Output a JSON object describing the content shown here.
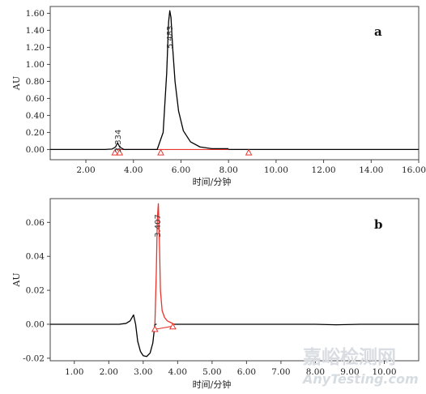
{
  "chart_data": [
    {
      "panel_label": "a",
      "type": "line",
      "xlabel": "时间/分钟",
      "ylabel": "AU",
      "xlim": [
        0.5,
        16.0
      ],
      "ylim": [
        -0.12,
        1.68
      ],
      "xticks": [
        2.0,
        4.0,
        6.0,
        8.0,
        10.0,
        12.0,
        14.0,
        16.0
      ],
      "xtick_labels": [
        "2.00",
        "4.00",
        "6.00",
        "8.00",
        "10.00",
        "12.00",
        "14.00",
        "16.00"
      ],
      "yticks": [
        0.0,
        0.2,
        0.4,
        0.6,
        0.8,
        1.0,
        1.2,
        1.4,
        1.6
      ],
      "ytick_labels": [
        "0.00",
        "0.20",
        "0.40",
        "0.60",
        "0.80",
        "1.00",
        "1.20",
        "1.40",
        "1.60"
      ],
      "series": [
        {
          "color": "#000000",
          "x": [
            0.5,
            2.8,
            3.1,
            3.25,
            3.334,
            3.42,
            3.6,
            5.0,
            5.25,
            5.4,
            5.48,
            5.53,
            5.58,
            5.65,
            5.75,
            5.9,
            6.1,
            6.4,
            6.8,
            7.3,
            8.0
          ],
          "y": [
            0.0,
            0.0,
            0.005,
            0.03,
            0.08,
            0.03,
            0.0,
            0.0,
            0.2,
            0.9,
            1.5,
            1.63,
            1.55,
            1.2,
            0.8,
            0.45,
            0.22,
            0.09,
            0.03,
            0.01,
            0.01
          ]
        },
        {
          "color": "#000000",
          "x": [
            8.0,
            16.0
          ],
          "y": [
            0.0,
            0.0
          ]
        }
      ],
      "baseline": {
        "color": "#e8342c",
        "x": [
          3.25,
          8.85
        ],
        "y": [
          0.0,
          0.0
        ]
      },
      "integration_marks": [
        {
          "x": 3.22,
          "y": -0.035
        },
        {
          "x": 3.42,
          "y": -0.035
        },
        {
          "x": 5.15,
          "y": -0.035
        },
        {
          "x": 8.85,
          "y": -0.035
        }
      ],
      "annotations": [
        {
          "text": "3.334",
          "x": 3.334,
          "y": 0.1
        },
        {
          "text": "5.483",
          "x": 5.5,
          "y": 1.32
        }
      ]
    },
    {
      "panel_label": "b",
      "type": "line",
      "xlabel": "时间/分钟",
      "ylabel": "AU",
      "xlim": [
        0.3,
        11.0
      ],
      "ylim": [
        -0.0215,
        0.074
      ],
      "xticks": [
        1.0,
        2.0,
        3.0,
        4.0,
        5.0,
        6.0,
        7.0,
        8.0,
        9.0,
        10.0
      ],
      "xtick_labels": [
        "1.00",
        "2.00",
        "3.00",
        "4.00",
        "5.00",
        "6.00",
        "7.00",
        "8.00",
        "9.00",
        "10.00"
      ],
      "yticks": [
        -0.02,
        0.0,
        0.02,
        0.04,
        0.06
      ],
      "ytick_labels": [
        "-0.02",
        "0.00",
        "0.02",
        "0.04",
        "0.06"
      ],
      "series": [
        {
          "color": "#000000",
          "x": [
            0.3,
            2.3,
            2.5,
            2.62,
            2.72,
            2.78,
            2.84,
            2.92,
            3.0,
            3.1,
            3.2,
            3.28,
            3.34,
            3.39
          ],
          "y": [
            0.0,
            0.0,
            0.0005,
            0.002,
            0.0055,
            0.0,
            -0.01,
            -0.016,
            -0.0185,
            -0.019,
            -0.017,
            -0.011,
            0.0,
            0.0
          ],
          "close_to": "red-peak"
        },
        {
          "color": "#e8342c",
          "x": [
            3.34,
            3.38,
            3.41,
            3.44,
            3.47,
            3.5,
            3.55,
            3.62,
            3.7,
            3.8,
            3.9
          ],
          "y": [
            0.0,
            0.03,
            0.062,
            0.071,
            0.05,
            0.02,
            0.008,
            0.004,
            0.002,
            0.001,
            0.0
          ]
        },
        {
          "color": "#000000",
          "x": [
            3.9,
            8.0,
            8.6,
            9.3,
            11.0
          ],
          "y": [
            0.0,
            0.0,
            -0.0003,
            0.0,
            0.0
          ]
        }
      ],
      "baseline": {
        "color": "#e8342c",
        "x": [
          3.34,
          3.9
        ],
        "y": [
          -0.003,
          -0.001
        ]
      },
      "integration_marks": [
        {
          "x": 3.34,
          "y": -0.0028
        },
        {
          "x": 3.86,
          "y": -0.0013
        }
      ],
      "annotations": [
        {
          "text": "3.407",
          "x": 3.41,
          "y": 0.058
        }
      ]
    }
  ],
  "watermark": {
    "line1": "嘉峪检测网",
    "line2": "AnyTesting.com"
  }
}
